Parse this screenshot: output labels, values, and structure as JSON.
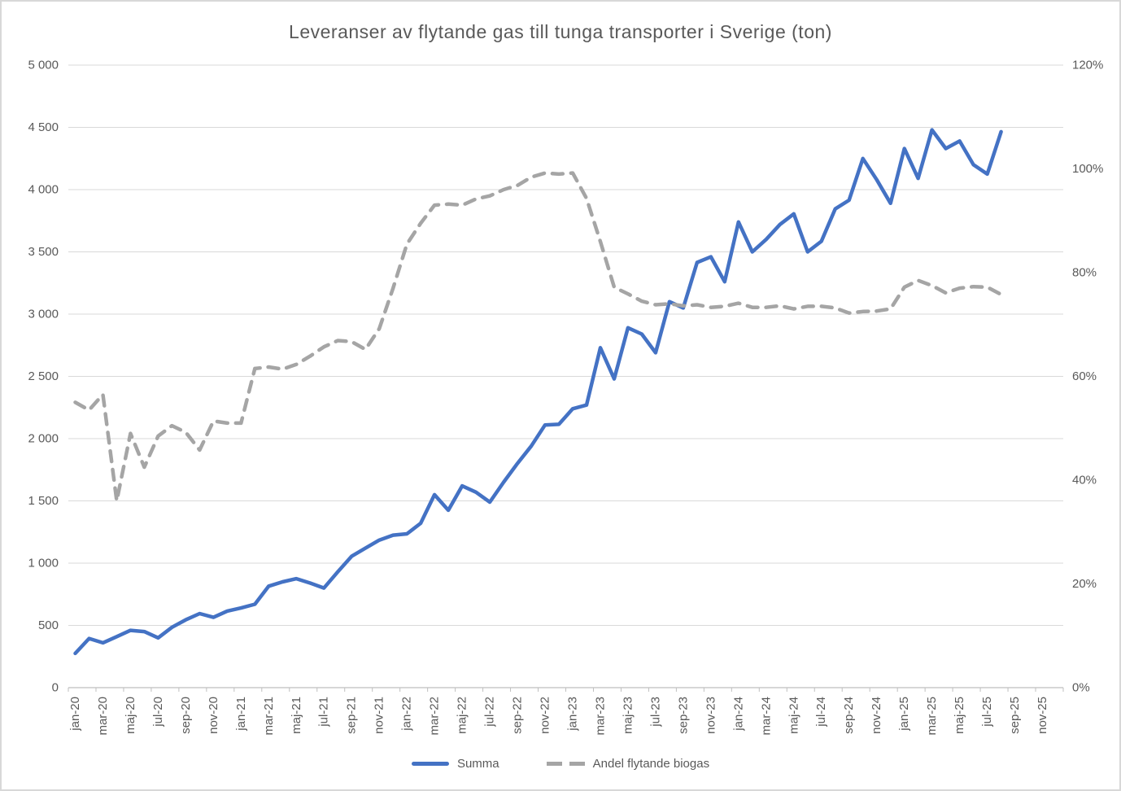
{
  "chart_data": {
    "type": "line",
    "title": "Leveranser av flytande gas till tunga transporter i Sverige (ton)",
    "grid": true,
    "legend_position": "bottom",
    "categories": [
      "jan-20",
      "feb-20",
      "mar-20",
      "apr-20",
      "maj-20",
      "jun-20",
      "jul-20",
      "aug-20",
      "sep-20",
      "okt-20",
      "nov-20",
      "dec-20",
      "jan-21",
      "feb-21",
      "mar-21",
      "apr-21",
      "maj-21",
      "jun-21",
      "jul-21",
      "aug-21",
      "sep-21",
      "okt-21",
      "nov-21",
      "dec-21",
      "jan-22",
      "feb-22",
      "mar-22",
      "apr-22",
      "maj-22",
      "jun-22",
      "jul-22",
      "aug-22",
      "sep-22",
      "okt-22",
      "nov-22",
      "dec-22",
      "jan-23",
      "feb-23",
      "mar-23",
      "apr-23",
      "maj-23",
      "jun-23",
      "jul-23",
      "aug-23",
      "sep-23",
      "okt-23",
      "nov-23",
      "dec-23",
      "jan-24",
      "feb-24",
      "mar-24",
      "apr-24",
      "maj-24",
      "jun-24",
      "jul-24",
      "aug-24",
      "sep-24",
      "okt-24",
      "nov-24",
      "dec-24",
      "jan-25",
      "feb-25",
      "mar-25",
      "apr-25",
      "maj-25",
      "jun-25",
      "jul-25",
      "aug-25"
    ],
    "x_tick_labels": [
      "jan-20",
      "mar-20",
      "maj-20",
      "jul-20",
      "sep-20",
      "nov-20",
      "jan-21",
      "mar-21",
      "maj-21",
      "jul-21",
      "sep-21",
      "nov-21",
      "jan-22",
      "mar-22",
      "maj-22",
      "jul-22",
      "sep-22",
      "nov-22",
      "jan-23",
      "mar-23",
      "maj-23",
      "jul-23",
      "sep-23",
      "nov-23",
      "jan-24",
      "mar-24",
      "maj-24",
      "jul-24",
      "sep-24",
      "nov-24",
      "jan-25",
      "mar-25",
      "maj-25",
      "jul-25",
      "sep-25",
      "nov-25"
    ],
    "x_total_categories": 72,
    "y_axis_left": {
      "min": 0,
      "max": 5000,
      "step": 500,
      "tick_labels": [
        "0",
        "500",
        "1 000",
        "1 500",
        "2 000",
        "2 500",
        "3 000",
        "3 500",
        "4 000",
        "4 500",
        "5 000"
      ]
    },
    "y_axis_right": {
      "min": 0,
      "max": 120,
      "step": 20,
      "tick_labels": [
        "0%",
        "20%",
        "40%",
        "60%",
        "80%",
        "100%",
        "120%"
      ]
    },
    "series": [
      {
        "name": "Summa",
        "axis": "left",
        "color": "#4472C4",
        "line_style": "solid",
        "values": [
          275,
          395,
          360,
          410,
          460,
          450,
          400,
          485,
          545,
          595,
          565,
          615,
          640,
          670,
          815,
          850,
          875,
          840,
          800,
          930,
          1055,
          1120,
          1185,
          1225,
          1235,
          1320,
          1550,
          1425,
          1620,
          1570,
          1490,
          1650,
          1800,
          1940,
          2110,
          2115,
          2240,
          2270,
          2730,
          2480,
          2890,
          2840,
          2690,
          3100,
          3050,
          3415,
          3460,
          3260,
          3740,
          3500,
          3600,
          3720,
          3805,
          3500,
          3585,
          3845,
          3915,
          4250,
          4080,
          3890,
          4330,
          4090,
          4480,
          4330,
          4390,
          4200,
          4125,
          4465
        ]
      },
      {
        "name": "Andel flytande biogas",
        "axis": "right",
        "color": "#A5A5A5",
        "line_style": "dashed",
        "values": [
          55,
          53.5,
          56.5,
          36,
          49,
          42.5,
          48.5,
          50.5,
          49.2,
          45.8,
          51.4,
          51,
          51,
          61.5,
          61.8,
          61.4,
          62.3,
          63.9,
          65.7,
          66.9,
          66.7,
          65.2,
          69.2,
          77,
          85.5,
          89.5,
          93,
          93.2,
          93,
          94.2,
          94.8,
          96,
          96.8,
          98.4,
          99.2,
          99,
          99.2,
          94.3,
          86,
          77.2,
          75.9,
          74.5,
          73.8,
          74,
          73.6,
          73.8,
          73.3,
          73.5,
          74.1,
          73.3,
          73.3,
          73.6,
          73,
          73.5,
          73.5,
          73.2,
          72.2,
          72.5,
          72.6,
          73,
          77.2,
          78.5,
          77.5,
          76.1,
          77,
          77.3,
          77.2,
          75.8
        ]
      }
    ],
    "colors": {
      "text": "#595959",
      "gridline": "#D9D9D9",
      "axis_line": "#BFBFBF",
      "background": "#FFFFFF"
    }
  }
}
